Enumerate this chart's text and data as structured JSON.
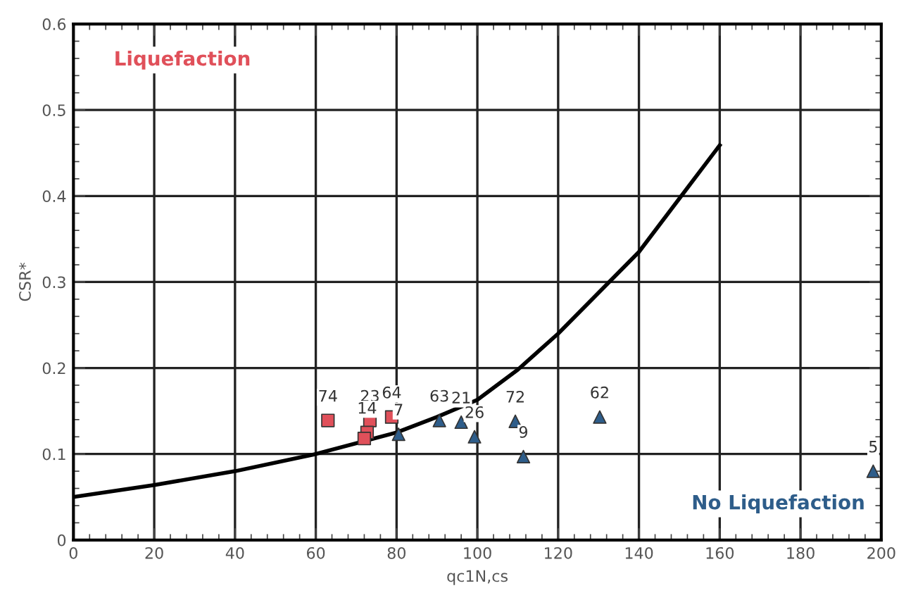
{
  "chart_data": {
    "type": "scatter",
    "xlabel": "qc1N,cs",
    "ylabel": "CSR*",
    "xlim": [
      0,
      200
    ],
    "ylim": [
      0,
      0.6
    ],
    "xticks": [
      0,
      20,
      40,
      60,
      80,
      100,
      120,
      140,
      160,
      180,
      200
    ],
    "yticks": [
      0,
      0.1,
      0.2,
      0.3,
      0.4,
      0.5,
      0.6
    ],
    "grid": true,
    "legend": false,
    "series": [
      {
        "marker": "square",
        "color": "#e0505a",
        "x": [
          63,
          73.4,
          72.7,
          72,
          78.8
        ],
        "values": [
          0.139,
          0.139,
          0.125,
          0.118,
          0.143
        ]
      },
      {
        "marker": "triangle",
        "color": "#2e5d8a",
        "x": [
          80.5,
          90.6,
          96,
          99.3,
          109.4,
          111.4,
          130.3,
          198
        ],
        "values": [
          0.123,
          0.139,
          0.137,
          0.12,
          0.138,
          0.097,
          0.143,
          0.08
        ]
      },
      {
        "type": "line",
        "marker": "none",
        "color": "#000000",
        "x": [
          0,
          20,
          40,
          60,
          80,
          90,
          100,
          110,
          120,
          140,
          160
        ],
        "values": [
          0.05,
          0.064,
          0.08,
          0.1,
          0.125,
          0.143,
          0.163,
          0.198,
          0.24,
          0.335,
          0.459
        ]
      }
    ],
    "annotations": [
      "Liquefaction",
      "No Liquefaction",
      {
        "text": "74",
        "x": 63,
        "y": 0.139
      },
      {
        "text": "23",
        "x": 73.4,
        "y": 0.139
      },
      {
        "text": "14",
        "x": 72.7,
        "y": 0.125
      },
      {
        "text": "64",
        "x": 78.8,
        "y": 0.143
      },
      {
        "text": "7",
        "x": 80.5,
        "y": 0.123
      },
      {
        "text": "63",
        "x": 90.6,
        "y": 0.139
      },
      {
        "text": "21",
        "x": 96,
        "y": 0.137
      },
      {
        "text": "26",
        "x": 99.3,
        "y": 0.12
      },
      {
        "text": "72",
        "x": 109.4,
        "y": 0.138
      },
      {
        "text": "9",
        "x": 111.4,
        "y": 0.097
      },
      {
        "text": "62",
        "x": 130.3,
        "y": 0.143
      },
      {
        "text": "5",
        "x": 198,
        "y": 0.08
      }
    ]
  }
}
